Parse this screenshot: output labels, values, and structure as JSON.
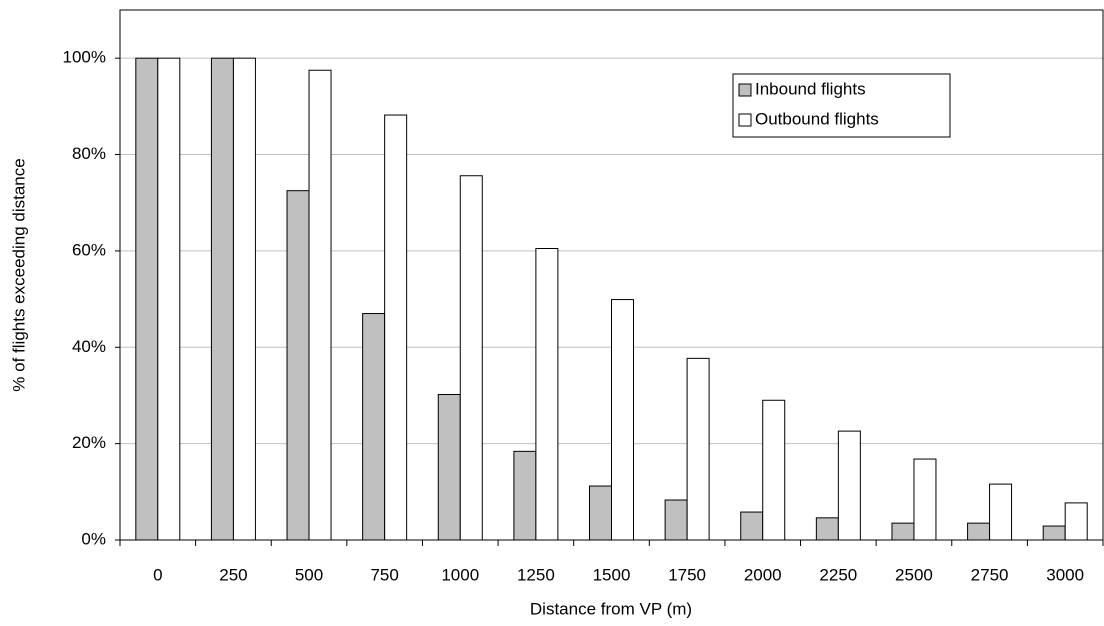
{
  "chart_data": {
    "type": "bar",
    "x_label": "Distance from VP (m)",
    "y_label": "% of flights exceeding distance",
    "categories": [
      "0",
      "250",
      "500",
      "750",
      "1000",
      "1250",
      "1500",
      "1750",
      "2000",
      "2250",
      "2500",
      "2750",
      "3000"
    ],
    "series": [
      {
        "name": "Inbound flights",
        "color": "#c0c0c0",
        "values": [
          100,
          100,
          72.5,
          47,
          30.2,
          18.4,
          11.2,
          8.3,
          5.8,
          4.6,
          3.5,
          3.5,
          2.9
        ]
      },
      {
        "name": "Outbound flights",
        "color": "#ffffff",
        "values": [
          100,
          100,
          97.5,
          88.2,
          75.6,
          60.5,
          49.9,
          37.7,
          29,
          22.6,
          16.8,
          11.6,
          7.7
        ]
      }
    ],
    "ylim": [
      0,
      110
    ],
    "yticks": [
      {
        "value": 0,
        "label": "0%"
      },
      {
        "value": 20,
        "label": "20%"
      },
      {
        "value": 40,
        "label": "40%"
      },
      {
        "value": 60,
        "label": "60%"
      },
      {
        "value": 80,
        "label": "80%"
      },
      {
        "value": 100,
        "label": "100%"
      }
    ],
    "grid": true,
    "legend": "upper right"
  }
}
